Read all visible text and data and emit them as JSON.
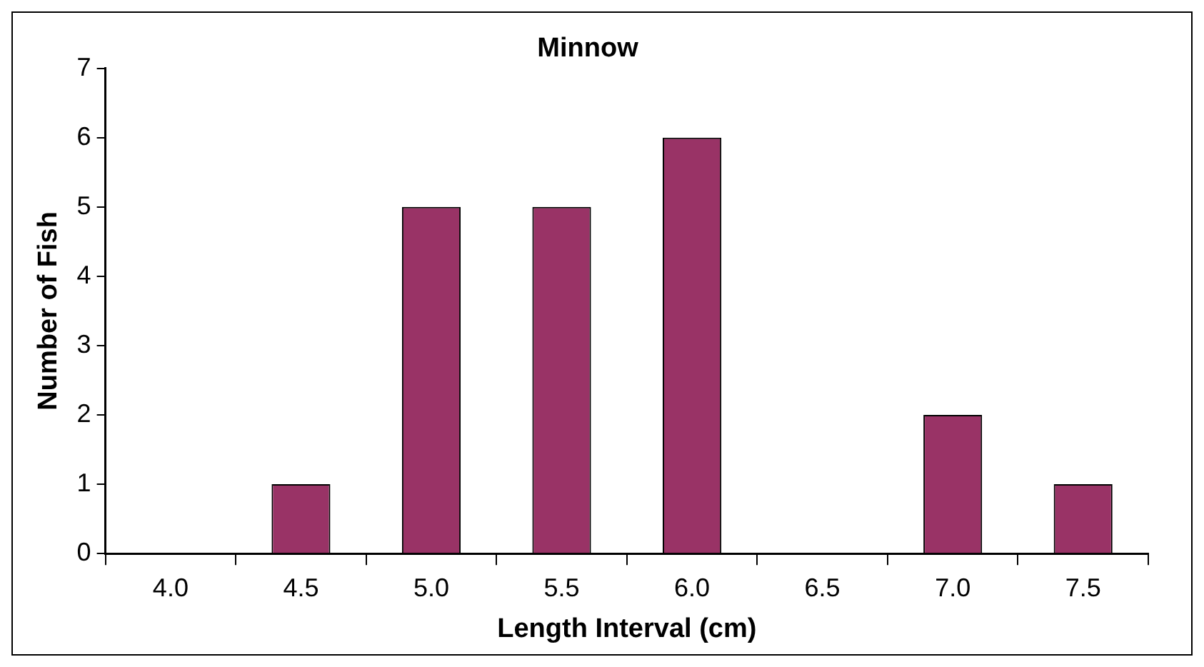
{
  "chart_data": {
    "type": "bar",
    "title": "Minnow",
    "xlabel": "Length Interval (cm)",
    "ylabel": "Number of Fish",
    "categories": [
      "4.0",
      "4.5",
      "5.0",
      "5.5",
      "6.0",
      "6.5",
      "7.0",
      "7.5"
    ],
    "values": [
      0,
      1,
      5,
      5,
      6,
      0,
      2,
      1
    ],
    "color": "#993366",
    "ylim": [
      0,
      7
    ],
    "yticks": [
      0,
      1,
      2,
      3,
      4,
      5,
      6,
      7
    ],
    "grid": false,
    "legend": false
  }
}
